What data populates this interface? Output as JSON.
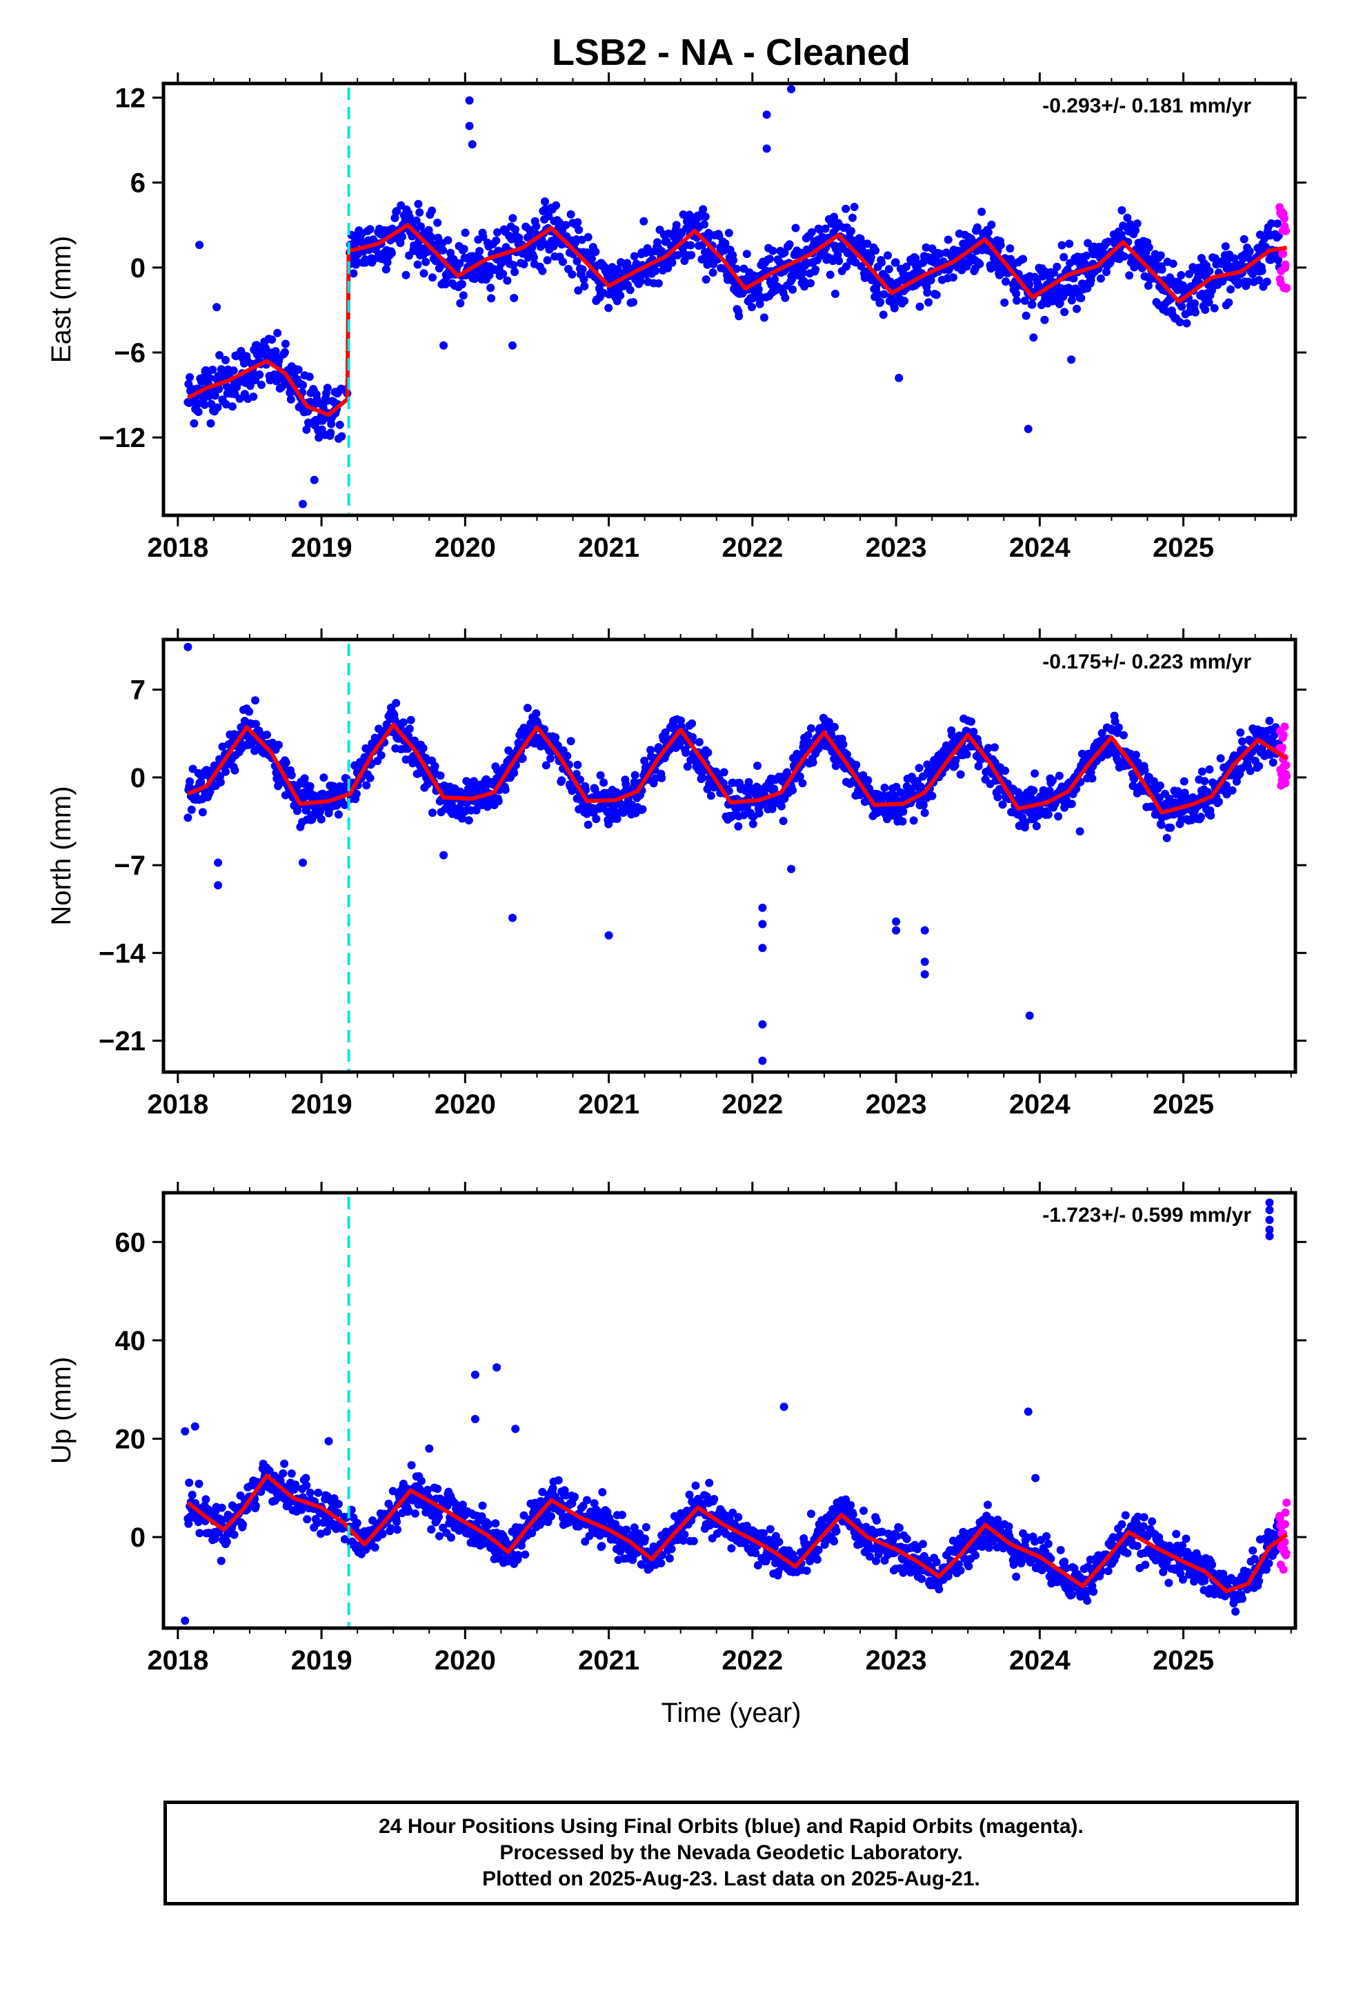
{
  "chart_data": {
    "type": "scatter",
    "title": "LSB2  - NA - Cleaned",
    "x_ticks": [
      2018,
      2019,
      2020,
      2021,
      2022,
      2023,
      2024,
      2025
    ],
    "xlim": [
      2017.9,
      2025.78
    ],
    "xlabel": "Time (year)",
    "equipment_change_epoch": 2019.19,
    "rapid_start": 2025.67,
    "colors": {
      "final": "#0000ff",
      "rapid": "#ff00ff",
      "model": "#ff0000",
      "offset_line": "#00e6e6"
    },
    "panels": [
      {
        "component": "East",
        "ylabel": "East (mm)",
        "ylim": [
          -17.5,
          13
        ],
        "y_ticks": [
          12,
          6,
          0,
          -6,
          -12
        ],
        "y_tick_labels": [
          "12",
          "6",
          "0",
          "−6",
          "−12"
        ],
        "rate": "-0.293+/- 0.181 mm/yr",
        "model": {
          "x": [
            2018.07,
            2018.2,
            2018.35,
            2018.5,
            2018.62,
            2018.75,
            2018.9,
            2019.05,
            2019.18,
            2019.19,
            2019.25,
            2019.4,
            2019.6,
            2019.8,
            2019.95,
            2020.15,
            2020.4,
            2020.6,
            2020.8,
            2021.0,
            2021.2,
            2021.4,
            2021.6,
            2021.8,
            2021.95,
            2022.15,
            2022.4,
            2022.6,
            2022.8,
            2022.97,
            2023.2,
            2023.4,
            2023.62,
            2023.8,
            2023.95,
            2024.2,
            2024.4,
            2024.58,
            2024.8,
            2024.97,
            2025.2,
            2025.4,
            2025.6,
            2025.72
          ],
          "y": [
            -9.2,
            -8.5,
            -8.0,
            -7.2,
            -6.6,
            -7.5,
            -9.8,
            -10.4,
            -9.3,
            1.2,
            1.3,
            1.7,
            3.0,
            1.0,
            -0.6,
            0.6,
            1.4,
            2.8,
            0.8,
            -1.3,
            -0.2,
            0.8,
            2.6,
            0.5,
            -1.5,
            -0.3,
            0.9,
            2.3,
            0.2,
            -1.8,
            -0.5,
            0.4,
            2.0,
            -0.2,
            -2.1,
            -0.5,
            0.1,
            1.8,
            -0.5,
            -2.4,
            -0.7,
            -0.3,
            1.2,
            1.4
          ]
        },
        "scatter": {
          "noise": 1.6,
          "spike": [
            [
              2018.15,
              1.6
            ],
            [
              2018.27,
              -2.8
            ],
            [
              2019.85,
              -5.5
            ],
            [
              2020.03,
              11.8
            ],
            [
              2020.03,
              10.0
            ],
            [
              2020.05,
              8.7
            ],
            [
              2020.33,
              -5.5
            ],
            [
              2022.1,
              10.8
            ],
            [
              2022.1,
              8.4
            ],
            [
              2022.27,
              12.6
            ],
            [
              2023.02,
              -7.8
            ],
            [
              2023.92,
              -11.4
            ],
            [
              2024.22,
              -6.5
            ],
            [
              2018.87,
              -16.7
            ],
            [
              2018.95,
              -15.0
            ]
          ],
          "spread_rapid": 4.0
        }
      },
      {
        "component": "North",
        "ylabel": "North (mm)",
        "ylim": [
          -23.5,
          11
        ],
        "y_ticks": [
          7,
          0,
          -7,
          -14,
          -21
        ],
        "y_tick_labels": [
          "7",
          "0",
          "−7",
          "−14",
          "−21"
        ],
        "rate": "-0.175+/- 0.223 mm/yr",
        "model": {
          "x": [
            2018.07,
            2018.2,
            2018.35,
            2018.48,
            2018.65,
            2018.85,
            2019.05,
            2019.2,
            2019.35,
            2019.5,
            2019.65,
            2019.85,
            2020.05,
            2020.2,
            2020.35,
            2020.5,
            2020.65,
            2020.85,
            2021.05,
            2021.2,
            2021.35,
            2021.5,
            2021.65,
            2021.85,
            2022.05,
            2022.2,
            2022.35,
            2022.5,
            2022.65,
            2022.85,
            2023.05,
            2023.2,
            2023.35,
            2023.5,
            2023.65,
            2023.85,
            2024.05,
            2024.2,
            2024.35,
            2024.5,
            2024.65,
            2024.85,
            2025.05,
            2025.2,
            2025.35,
            2025.52,
            2025.72
          ],
          "y": [
            -1.3,
            -0.7,
            1.8,
            4.0,
            2.0,
            -2.1,
            -1.9,
            -1.3,
            1.8,
            4.2,
            2.2,
            -1.6,
            -1.7,
            -1.2,
            1.5,
            4.0,
            1.8,
            -1.9,
            -1.8,
            -1.1,
            1.6,
            3.8,
            1.4,
            -2.0,
            -1.8,
            -1.2,
            1.4,
            3.6,
            1.2,
            -2.2,
            -2.1,
            -1.2,
            1.2,
            3.4,
            1.2,
            -2.5,
            -2.0,
            -1.1,
            1.2,
            3.2,
            0.9,
            -2.8,
            -2.2,
            -1.5,
            1.0,
            3.0,
            1.5
          ]
        },
        "scatter": {
          "noise": 1.3,
          "spike": [
            [
              2018.07,
              10.4
            ],
            [
              2018.28,
              -6.8
            ],
            [
              2018.28,
              -8.6
            ],
            [
              2018.87,
              -6.8
            ],
            [
              2019.85,
              -6.2
            ],
            [
              2020.33,
              -11.2
            ],
            [
              2021.0,
              -12.6
            ],
            [
              2022.07,
              -10.4
            ],
            [
              2022.07,
              -11.7
            ],
            [
              2022.07,
              -13.6
            ],
            [
              2022.07,
              -19.7
            ],
            [
              2022.07,
              -22.6
            ],
            [
              2022.27,
              -7.3
            ],
            [
              2023.0,
              -11.5
            ],
            [
              2023.0,
              -12.2
            ],
            [
              2023.2,
              -12.2
            ],
            [
              2023.2,
              -14.7
            ],
            [
              2023.2,
              -15.7
            ],
            [
              2023.93,
              -19.0
            ],
            [
              2024.28,
              -4.3
            ]
          ],
          "spread_rapid": 3.2
        }
      },
      {
        "component": "Up",
        "ylabel": "Up (mm)",
        "ylim": [
          -18.5,
          70
        ],
        "y_ticks": [
          60,
          40,
          20,
          0
        ],
        "y_tick_labels": [
          "60",
          "40",
          "20",
          "0"
        ],
        "rate": "-1.723+/- 0.599 mm/yr",
        "model": {
          "x": [
            2018.07,
            2018.2,
            2018.32,
            2018.45,
            2018.62,
            2018.8,
            2019.0,
            2019.15,
            2019.3,
            2019.45,
            2019.62,
            2019.8,
            2020.0,
            2020.15,
            2020.3,
            2020.45,
            2020.6,
            2020.8,
            2021.0,
            2021.15,
            2021.3,
            2021.45,
            2021.62,
            2021.8,
            2022.0,
            2022.15,
            2022.3,
            2022.45,
            2022.62,
            2022.8,
            2023.0,
            2023.15,
            2023.3,
            2023.45,
            2023.62,
            2023.8,
            2024.0,
            2024.15,
            2024.3,
            2024.45,
            2024.62,
            2024.8,
            2025.0,
            2025.15,
            2025.3,
            2025.45,
            2025.6,
            2025.72
          ],
          "y": [
            7.0,
            4.0,
            1.5,
            5.5,
            12.5,
            8.0,
            6.0,
            3.0,
            -1.5,
            3.5,
            9.5,
            6.5,
            3.0,
            0.5,
            -3.0,
            2.5,
            7.5,
            4.0,
            1.5,
            -1.0,
            -4.5,
            0.5,
            6.0,
            2.5,
            -0.5,
            -3.0,
            -6.0,
            -1.0,
            4.5,
            0.0,
            -2.5,
            -5.0,
            -8.0,
            -3.5,
            2.5,
            -1.5,
            -4.0,
            -7.0,
            -10.0,
            -5.0,
            1.0,
            -2.0,
            -5.0,
            -7.0,
            -11.0,
            -9.5,
            -2.0,
            0.5
          ]
        },
        "scatter": {
          "noise": 3.2,
          "spike": [
            [
              2018.05,
              21.5
            ],
            [
              2018.12,
              22.5
            ],
            [
              2018.05,
              -17.0
            ],
            [
              2019.05,
              19.5
            ],
            [
              2019.75,
              18.0
            ],
            [
              2020.07,
              33.0
            ],
            [
              2020.07,
              24.0
            ],
            [
              2020.22,
              34.5
            ],
            [
              2020.35,
              22.0
            ],
            [
              2022.22,
              26.5
            ],
            [
              2023.92,
              25.5
            ],
            [
              2023.97,
              12.0
            ],
            [
              2025.6,
              68.0
            ],
            [
              2025.6,
              66.5
            ],
            [
              2025.6,
              64.5
            ],
            [
              2025.6,
              62.5
            ],
            [
              2025.6,
              61.2
            ]
          ],
          "spread_rapid": 9.0
        }
      }
    ]
  },
  "footer": {
    "line1": "24 Hour Positions Using Final Orbits (blue) and Rapid Orbits (magenta).",
    "line2": "Processed by the Nevada Geodetic Laboratory.",
    "line3": "Plotted on 2025-Aug-23. Last data on 2025-Aug-21."
  }
}
